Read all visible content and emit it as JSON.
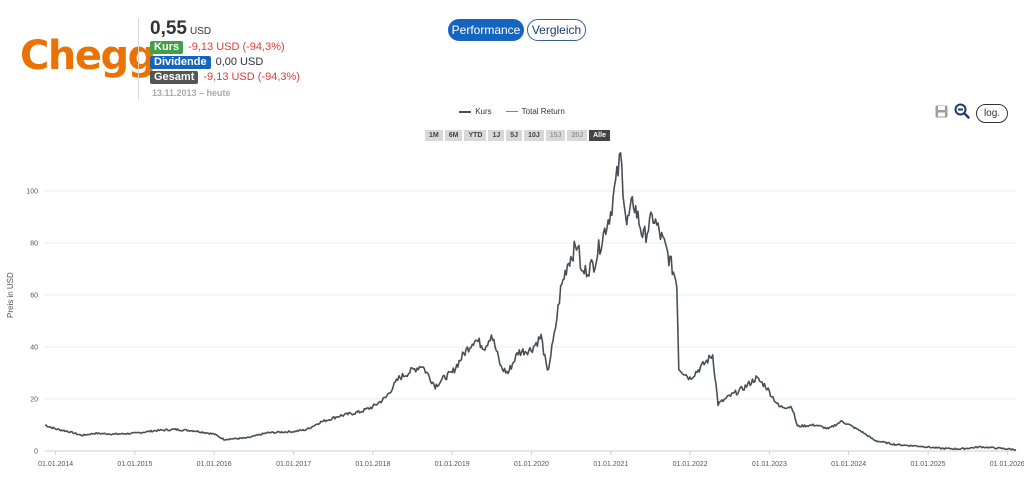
{
  "header": {
    "logo_text": "Chegg",
    "logo_color": "#eb7100",
    "price_value": "0,55",
    "price_currency": "USD",
    "rows": [
      {
        "label": "Kurs",
        "value": "-9,13 USD (-94,3%)",
        "badge_color": "#43a047",
        "value_color": "#e53935"
      },
      {
        "label": "Dividende",
        "value": "0,00 USD",
        "badge_color": "#1565c0",
        "value_color": "#333333"
      },
      {
        "label": "Gesamt",
        "value": "-9,13 USD (-94,3%)",
        "badge_color": "#555555",
        "value_color": "#e53935"
      }
    ],
    "date_range": "13.11.2013 – heute"
  },
  "tabs": {
    "performance": "Performance",
    "vergleich": "Vergleich"
  },
  "legend": {
    "kurs": "Kurs",
    "total_return": "Total Return"
  },
  "toolbar": {
    "log_label": "log."
  },
  "range_buttons": [
    {
      "label": "1M",
      "state": "normal"
    },
    {
      "label": "6M",
      "state": "normal"
    },
    {
      "label": "YTD",
      "state": "normal"
    },
    {
      "label": "1J",
      "state": "normal"
    },
    {
      "label": "5J",
      "state": "normal"
    },
    {
      "label": "10J",
      "state": "normal"
    },
    {
      "label": "15J",
      "state": "disabled"
    },
    {
      "label": "20J",
      "state": "disabled"
    },
    {
      "label": "Alle",
      "state": "active"
    }
  ],
  "chart_data": {
    "type": "line",
    "ylabel": "Preis in USD",
    "xlabel": "",
    "ylim": [
      0,
      115
    ],
    "xlim": [
      "2013-11-13",
      "2026-02-10"
    ],
    "y_ticks": [
      0,
      20,
      40,
      60,
      80,
      100
    ],
    "x_ticks": [
      "01.01.2014",
      "01.01.2015",
      "01.01.2016",
      "01.01.2017",
      "01.01.2018",
      "01.01.2019",
      "01.01.2020",
      "01.01.2021",
      "01.01.2022",
      "01.01.2023",
      "01.01.2024",
      "01.01.2025",
      "01.01.2026"
    ],
    "grid": true,
    "legend_position": "top-center",
    "series": [
      {
        "name": "Kurs",
        "color": "#4a4f57",
        "points": [
          [
            "2013-11-13",
            10
          ],
          [
            "2014-01-01",
            8.5
          ],
          [
            "2014-03-01",
            7.5
          ],
          [
            "2014-05-01",
            6
          ],
          [
            "2014-07-01",
            6.8
          ],
          [
            "2014-10-01",
            6.5
          ],
          [
            "2015-01-01",
            6.8
          ],
          [
            "2015-04-01",
            7.8
          ],
          [
            "2015-07-01",
            8.3
          ],
          [
            "2015-10-01",
            7.8
          ],
          [
            "2016-01-01",
            6.5
          ],
          [
            "2016-02-15",
            4.5
          ],
          [
            "2016-06-01",
            5
          ],
          [
            "2016-09-01",
            7
          ],
          [
            "2017-01-01",
            7.5
          ],
          [
            "2017-03-01",
            8.2
          ],
          [
            "2017-05-01",
            11
          ],
          [
            "2017-08-01",
            13.5
          ],
          [
            "2017-11-01",
            15
          ],
          [
            "2018-01-01",
            17
          ],
          [
            "2018-03-01",
            20.5
          ],
          [
            "2018-05-01",
            28
          ],
          [
            "2018-07-01",
            31
          ],
          [
            "2018-08-15",
            33
          ],
          [
            "2018-10-15",
            25
          ],
          [
            "2018-12-01",
            28.5
          ],
          [
            "2019-01-01",
            30
          ],
          [
            "2019-03-01",
            38
          ],
          [
            "2019-04-15",
            43
          ],
          [
            "2019-06-01",
            40
          ],
          [
            "2019-07-01",
            45
          ],
          [
            "2019-08-15",
            32
          ],
          [
            "2019-09-15",
            30
          ],
          [
            "2019-11-01",
            38
          ],
          [
            "2019-12-31",
            39
          ],
          [
            "2020-02-15",
            44
          ],
          [
            "2020-03-15",
            30
          ],
          [
            "2020-04-15",
            44
          ],
          [
            "2020-05-15",
            62
          ],
          [
            "2020-06-15",
            72
          ],
          [
            "2020-08-01",
            80
          ],
          [
            "2020-08-20",
            68
          ],
          [
            "2020-10-15",
            72
          ],
          [
            "2020-12-31",
            92
          ],
          [
            "2021-02-15",
            113
          ],
          [
            "2021-03-15",
            87
          ],
          [
            "2021-04-15",
            96
          ],
          [
            "2021-06-01",
            82
          ],
          [
            "2021-07-15",
            90
          ],
          [
            "2021-09-15",
            77
          ],
          [
            "2021-11-01",
            65
          ],
          [
            "2021-11-10",
            32
          ],
          [
            "2021-12-31",
            28
          ],
          [
            "2022-03-01",
            33
          ],
          [
            "2022-04-15",
            37
          ],
          [
            "2022-05-10",
            18
          ],
          [
            "2022-07-01",
            21
          ],
          [
            "2022-09-01",
            24
          ],
          [
            "2022-11-01",
            28
          ],
          [
            "2022-12-15",
            25
          ],
          [
            "2023-02-15",
            17
          ],
          [
            "2023-04-15",
            17
          ],
          [
            "2023-05-10",
            9.5
          ],
          [
            "2023-08-01",
            10
          ],
          [
            "2023-10-01",
            8.5
          ],
          [
            "2023-12-01",
            11.5
          ],
          [
            "2024-03-01",
            7.5
          ],
          [
            "2024-05-01",
            4
          ],
          [
            "2024-08-01",
            2.5
          ],
          [
            "2024-12-01",
            1.8
          ],
          [
            "2025-03-01",
            1.0
          ],
          [
            "2025-06-01",
            0.8
          ],
          [
            "2025-09-01",
            1.6
          ],
          [
            "2025-12-01",
            1.0
          ],
          [
            "2026-02-10",
            0.55
          ]
        ]
      },
      {
        "name": "Total Return",
        "color": "#4a90d9",
        "points": []
      }
    ]
  }
}
